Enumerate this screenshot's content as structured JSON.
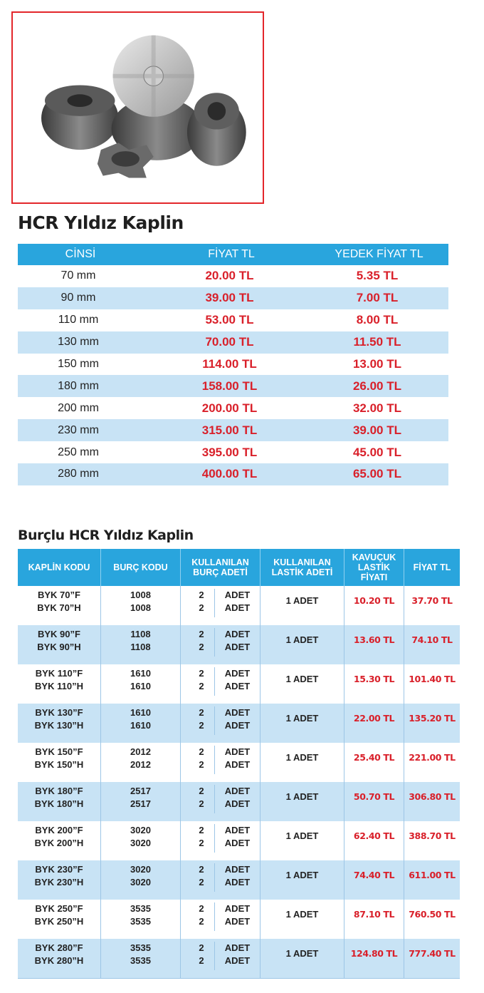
{
  "table1": {
    "title": "HCR Yıldız Kaplin",
    "headers": [
      "CİNSİ",
      "FİYAT TL",
      "YEDEK FİYAT TL"
    ],
    "rows": [
      {
        "cinsi": "70 mm",
        "fiyat": "20.00 TL",
        "yedek": "5.35 TL"
      },
      {
        "cinsi": "90 mm",
        "fiyat": "39.00 TL",
        "yedek": "7.00 TL"
      },
      {
        "cinsi": "110 mm",
        "fiyat": "53.00 TL",
        "yedek": "8.00 TL"
      },
      {
        "cinsi": "130 mm",
        "fiyat": "70.00 TL",
        "yedek": "11.50 TL"
      },
      {
        "cinsi": "150 mm",
        "fiyat": "114.00 TL",
        "yedek": "13.00 TL"
      },
      {
        "cinsi": "180 mm",
        "fiyat": "158.00 TL",
        "yedek": "26.00 TL"
      },
      {
        "cinsi": "200 mm",
        "fiyat": "200.00 TL",
        "yedek": "32.00 TL"
      },
      {
        "cinsi": "230 mm",
        "fiyat": "315.00 TL",
        "yedek": "39.00 TL"
      },
      {
        "cinsi": "250 mm",
        "fiyat": "395.00 TL",
        "yedek": "45.00 TL"
      },
      {
        "cinsi": "280 mm",
        "fiyat": "400.00 TL",
        "yedek": "65.00 TL"
      }
    ]
  },
  "table2": {
    "title": "Burçlu HCR Yıldız Kaplin",
    "headers": [
      "KAPLİN KODU",
      "BURÇ KODU",
      "KULLANILAN\nBURÇ ADETİ",
      "KULLANILAN\nLASTİK ADETİ",
      "KAVUÇUK\nLASTİK\nFİYATI",
      "FİYAT TL"
    ],
    "groups": [
      {
        "codes": [
          "BYK 70”F",
          "BYK 70”H"
        ],
        "burc": [
          "1008",
          "1008"
        ],
        "adet_n": [
          "2",
          "2"
        ],
        "adet_u": [
          "ADET",
          "ADET"
        ],
        "lastik": "1 ADET",
        "kavucuk": "10.20 TL",
        "fiyat": "37.70 TL"
      },
      {
        "codes": [
          "BYK 90”F",
          "BYK 90”H"
        ],
        "burc": [
          "1108",
          "1108"
        ],
        "adet_n": [
          "2",
          "2"
        ],
        "adet_u": [
          "ADET",
          "ADET"
        ],
        "lastik": "1 ADET",
        "kavucuk": "13.60 TL",
        "fiyat": "74.10 TL"
      },
      {
        "codes": [
          "BYK 110”F",
          "BYK 110”H"
        ],
        "burc": [
          "1610",
          "1610"
        ],
        "adet_n": [
          "2",
          "2"
        ],
        "adet_u": [
          "ADET",
          "ADET"
        ],
        "lastik": "1 ADET",
        "kavucuk": "15.30 TL",
        "fiyat": "101.40 TL"
      },
      {
        "codes": [
          "BYK 130”F",
          "BYK 130”H"
        ],
        "burc": [
          "1610",
          "1610"
        ],
        "adet_n": [
          "2",
          "2"
        ],
        "adet_u": [
          "ADET",
          "ADET"
        ],
        "lastik": "1 ADET",
        "kavucuk": "22.00 TL",
        "fiyat": "135.20 TL"
      },
      {
        "codes": [
          "BYK 150”F",
          "BYK 150”H"
        ],
        "burc": [
          "2012",
          "2012"
        ],
        "adet_n": [
          "2",
          "2"
        ],
        "adet_u": [
          "ADET",
          "ADET"
        ],
        "lastik": "1 ADET",
        "kavucuk": "25.40 TL",
        "fiyat": "221.00 TL"
      },
      {
        "codes": [
          "BYK 180”F",
          "BYK 180”H"
        ],
        "burc": [
          "2517",
          "2517"
        ],
        "adet_n": [
          "2",
          "2"
        ],
        "adet_u": [
          "ADET",
          "ADET"
        ],
        "lastik": "1 ADET",
        "kavucuk": "50.70 TL",
        "fiyat": "306.80 TL"
      },
      {
        "codes": [
          "BYK 200”F",
          "BYK 200”H"
        ],
        "burc": [
          "3020",
          "3020"
        ],
        "adet_n": [
          "2",
          "2"
        ],
        "adet_u": [
          "ADET",
          "ADET"
        ],
        "lastik": "1 ADET",
        "kavucuk": "62.40 TL",
        "fiyat": "388.70 TL"
      },
      {
        "codes": [
          "BYK 230”F",
          "BYK 230”H"
        ],
        "burc": [
          "3020",
          "3020"
        ],
        "adet_n": [
          "2",
          "2"
        ],
        "adet_u": [
          "ADET",
          "ADET"
        ],
        "lastik": "1 ADET",
        "kavucuk": "74.40 TL",
        "fiyat": "611.00 TL"
      },
      {
        "codes": [
          "BYK 250”F",
          "BYK 250”H"
        ],
        "burc": [
          "3535",
          "3535"
        ],
        "adet_n": [
          "2",
          "2"
        ],
        "adet_u": [
          "ADET",
          "ADET"
        ],
        "lastik": "1 ADET",
        "kavucuk": "87.10 TL",
        "fiyat": "760.50 TL"
      },
      {
        "codes": [
          "BYK 280”F",
          "BYK 280”H"
        ],
        "burc": [
          "3535",
          "3535"
        ],
        "adet_n": [
          "2",
          "2"
        ],
        "adet_u": [
          "ADET",
          "ADET"
        ],
        "lastik": "1 ADET",
        "kavucuk": "124.80 TL",
        "fiyat": "777.40 TL"
      }
    ]
  },
  "colors": {
    "header_blue": "#29a5dd",
    "row_alt": "#c8e3f5",
    "price_red": "#d9202a",
    "frame_red": "#e3262b"
  }
}
